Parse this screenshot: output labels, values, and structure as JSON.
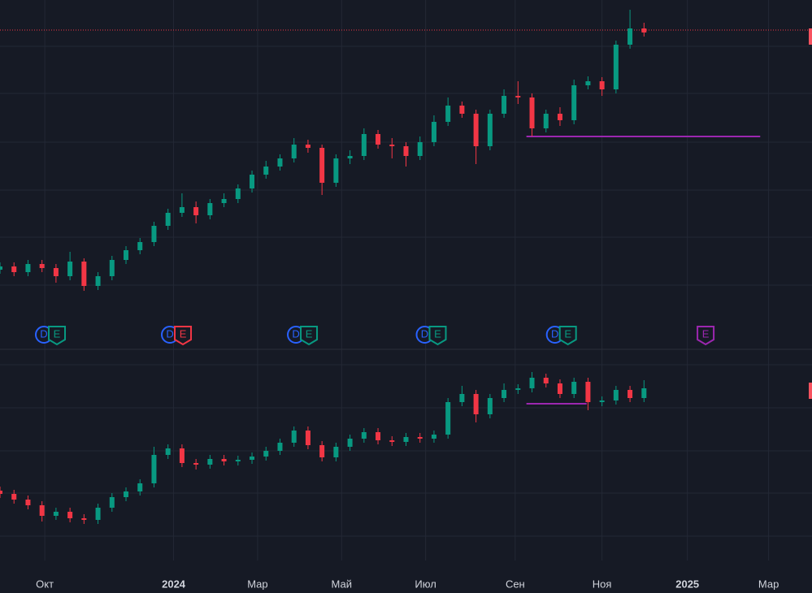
{
  "chart_data": [
    {
      "type": "candlestick",
      "up_color": "#089981",
      "down_color": "#f23645",
      "xlim": [
        0,
        580
      ],
      "ylim": [
        0,
        390
      ],
      "x": [
        0,
        10,
        20,
        30,
        40,
        50,
        60,
        70,
        80,
        90,
        100,
        110,
        120,
        130,
        140,
        150,
        160,
        170,
        180,
        190,
        200,
        210,
        220,
        230,
        240,
        250,
        260,
        270,
        280,
        290,
        300,
        310,
        320,
        330,
        340,
        350,
        360,
        370,
        380,
        390,
        400,
        410,
        420,
        430,
        440,
        450,
        460
      ],
      "open": [
        58,
        62,
        55,
        65,
        60,
        50,
        68,
        38,
        50,
        70,
        82,
        92,
        112,
        128,
        135,
        125,
        140,
        145,
        158,
        175,
        185,
        195,
        212,
        208,
        165,
        195,
        198,
        225,
        212,
        210,
        198,
        215,
        240,
        260,
        250,
        210,
        250,
        272,
        270,
        232,
        250,
        242,
        285,
        290,
        280,
        335,
        355
      ],
      "high": [
        67,
        67,
        70,
        70,
        65,
        80,
        72,
        55,
        75,
        87,
        97,
        117,
        133,
        152,
        142,
        145,
        152,
        163,
        180,
        192,
        200,
        220,
        218,
        212,
        200,
        205,
        232,
        230,
        220,
        215,
        222,
        248,
        270,
        265,
        255,
        255,
        280,
        290,
        275,
        255,
        258,
        292,
        296,
        295,
        340,
        378,
        362
      ],
      "low": [
        53,
        50,
        50,
        55,
        42,
        45,
        32,
        33,
        45,
        65,
        77,
        87,
        107,
        123,
        115,
        120,
        135,
        140,
        153,
        170,
        180,
        190,
        202,
        150,
        160,
        188,
        193,
        207,
        195,
        185,
        193,
        210,
        235,
        245,
        188,
        205,
        245,
        262,
        222,
        227,
        235,
        237,
        280,
        272,
        275,
        330,
        345
      ],
      "close": [
        62,
        55,
        65,
        60,
        50,
        68,
        38,
        50,
        70,
        82,
        92,
        112,
        128,
        135,
        125,
        140,
        145,
        158,
        175,
        185,
        195,
        212,
        208,
        165,
        195,
        198,
        225,
        212,
        210,
        198,
        215,
        240,
        260,
        250,
        210,
        250,
        272,
        270,
        232,
        250,
        242,
        285,
        290,
        280,
        335,
        355,
        350
      ],
      "hlines": [
        {
          "value": 353,
          "x": [
            0,
            580
          ],
          "color": "#f23645",
          "style": "dotted"
        },
        {
          "value": 222,
          "x": [
            376,
            543
          ],
          "color": "#9c27b0",
          "style": "solid"
        }
      ],
      "price_marker": {
        "value": 345,
        "color": "#f7525f"
      }
    },
    {
      "type": "candlestick",
      "up_color": "#089981",
      "down_color": "#f23645",
      "xlim": [
        0,
        580
      ],
      "ylim": [
        0,
        260
      ],
      "x": [
        0,
        10,
        20,
        30,
        40,
        50,
        60,
        70,
        80,
        90,
        100,
        110,
        120,
        130,
        140,
        150,
        160,
        170,
        180,
        190,
        200,
        210,
        220,
        230,
        240,
        250,
        260,
        270,
        280,
        290,
        300,
        310,
        320,
        330,
        340,
        350,
        360,
        370,
        380,
        390,
        400,
        410,
        420,
        430,
        440,
        450,
        460
      ],
      "open": [
        86,
        82,
        75,
        68,
        55,
        60,
        52,
        50,
        65,
        78,
        85,
        95,
        130,
        138,
        120,
        118,
        125,
        122,
        124,
        128,
        135,
        145,
        160,
        142,
        127,
        140,
        150,
        158,
        148,
        146,
        152,
        150,
        155,
        195,
        205,
        180,
        200,
        210,
        212,
        225,
        218,
        205,
        220,
        195,
        197,
        210,
        200
      ],
      "high": [
        91,
        87,
        80,
        73,
        65,
        65,
        57,
        70,
        83,
        90,
        100,
        140,
        143,
        143,
        125,
        130,
        130,
        129,
        133,
        140,
        150,
        165,
        165,
        147,
        145,
        155,
        163,
        163,
        153,
        157,
        157,
        160,
        200,
        215,
        210,
        205,
        218,
        217,
        232,
        230,
        223,
        225,
        225,
        202,
        215,
        215,
        222
      ],
      "low": [
        77,
        70,
        63,
        48,
        50,
        47,
        45,
        45,
        60,
        73,
        80,
        90,
        125,
        115,
        112,
        113,
        117,
        117,
        119,
        123,
        130,
        140,
        137,
        122,
        122,
        135,
        145,
        143,
        141,
        141,
        145,
        145,
        150,
        190,
        170,
        175,
        195,
        205,
        207,
        213,
        200,
        200,
        185,
        190,
        192,
        195,
        195
      ],
      "close": [
        82,
        75,
        68,
        55,
        60,
        52,
        50,
        65,
        78,
        85,
        95,
        130,
        138,
        120,
        118,
        125,
        122,
        124,
        128,
        135,
        145,
        160,
        142,
        127,
        140,
        150,
        158,
        148,
        146,
        152,
        150,
        155,
        195,
        205,
        180,
        200,
        210,
        212,
        225,
        218,
        205,
        220,
        195,
        197,
        210,
        200,
        212
      ],
      "hlines": [
        {
          "value": 193,
          "x": [
            376,
            419
          ],
          "color": "#9c27b0",
          "style": "solid"
        }
      ],
      "price_marker": {
        "value": 209,
        "color": "#f7525f"
      },
      "xticks": [
        {
          "value": 32,
          "label": "Окт"
        },
        {
          "value": 124,
          "label": "2024"
        },
        {
          "value": 184,
          "label": "Мар"
        },
        {
          "value": 244,
          "label": "Май"
        },
        {
          "value": 304,
          "label": "Июл"
        },
        {
          "value": 368,
          "label": "Сен"
        },
        {
          "value": 430,
          "label": "Ноя"
        },
        {
          "value": 491,
          "label": "2025"
        },
        {
          "value": 549,
          "label": "Мар"
        }
      ]
    }
  ],
  "events": [
    {
      "day": 36,
      "labels": [
        "D",
        "E"
      ],
      "color": "#089981"
    },
    {
      "day": 126,
      "labels": [
        "D",
        "E"
      ],
      "color": "#f23645"
    },
    {
      "day": 216,
      "labels": [
        "D",
        "E"
      ],
      "color": "#089981"
    },
    {
      "day": 308,
      "labels": [
        "D",
        "E"
      ],
      "color": "#089981"
    },
    {
      "day": 401,
      "labels": [
        "D",
        "E"
      ],
      "color": "#089981"
    },
    {
      "day": 504,
      "labels": [
        "E"
      ],
      "color": "#9c27b0"
    }
  ]
}
